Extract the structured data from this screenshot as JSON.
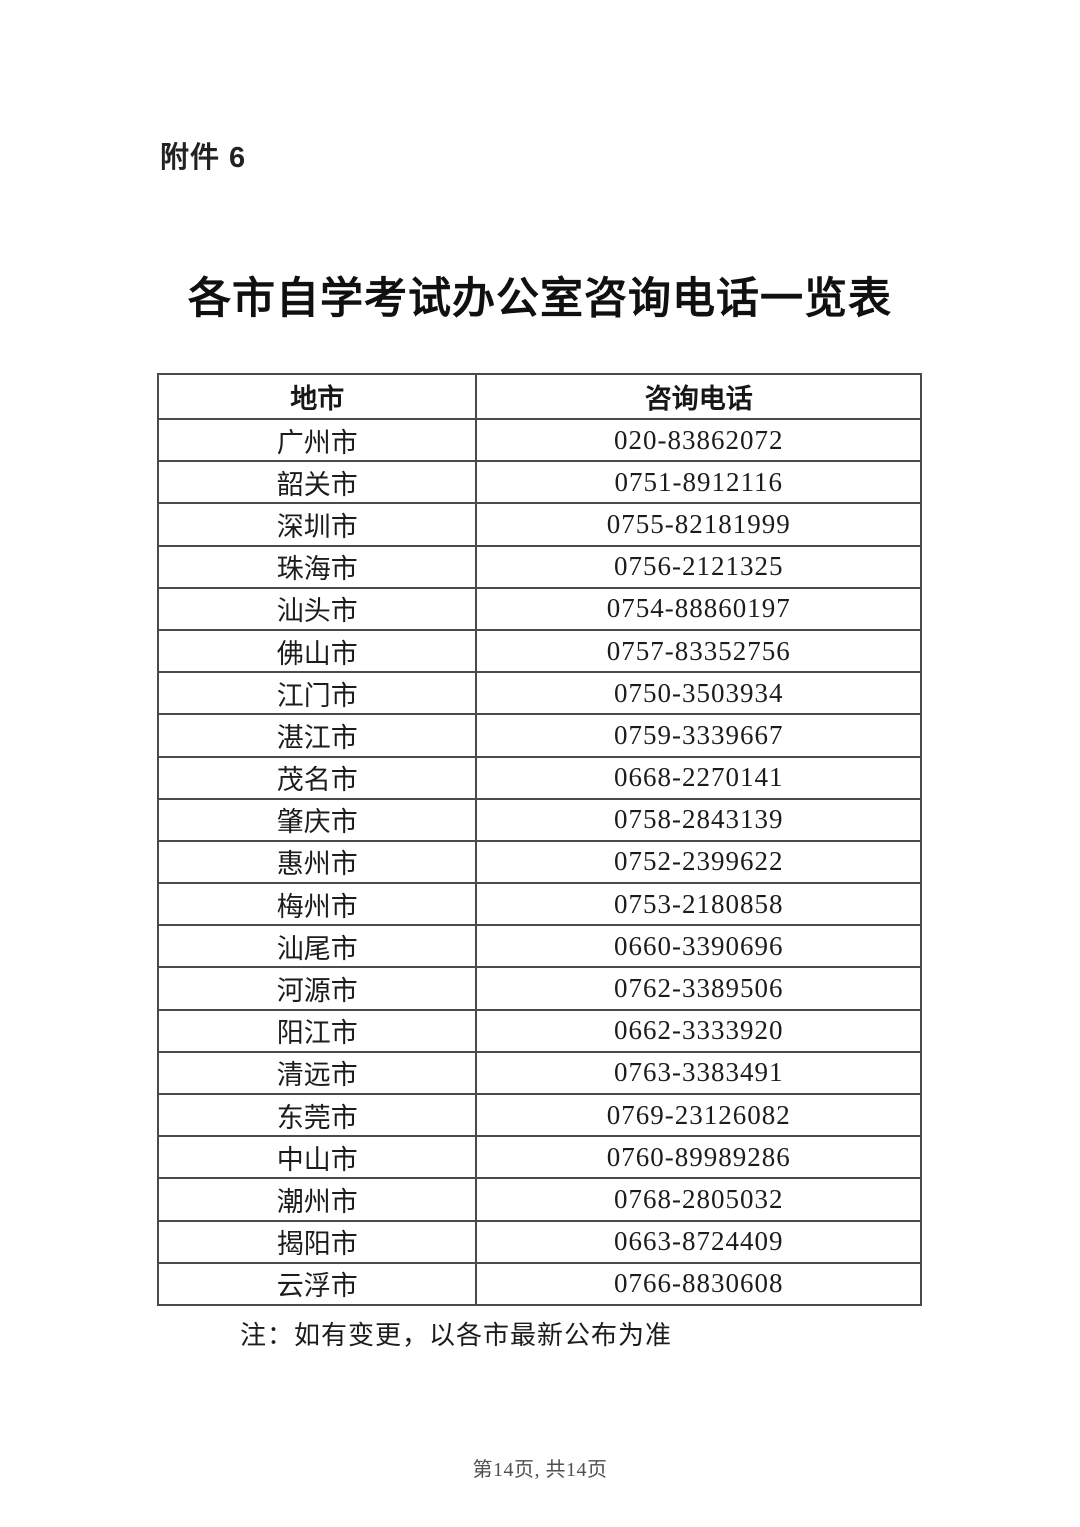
{
  "page": {
    "attachment_label": "附件 6",
    "title": "各市自学考试办公室咨询电话一览表",
    "note": "注：如有变更，以各市最新公布为准",
    "footer": "第14页, 共14页"
  },
  "table": {
    "headers": [
      "地市",
      "咨询电话"
    ],
    "rows": [
      {
        "city": "广州市",
        "phone": "020-83862072"
      },
      {
        "city": "韶关市",
        "phone": "0751-8912116"
      },
      {
        "city": "深圳市",
        "phone": "0755-82181999"
      },
      {
        "city": "珠海市",
        "phone": "0756-2121325"
      },
      {
        "city": "汕头市",
        "phone": "0754-88860197"
      },
      {
        "city": "佛山市",
        "phone": "0757-83352756"
      },
      {
        "city": "江门市",
        "phone": "0750-3503934"
      },
      {
        "city": "湛江市",
        "phone": "0759-3339667"
      },
      {
        "city": "茂名市",
        "phone": "0668-2270141"
      },
      {
        "city": "肇庆市",
        "phone": "0758-2843139"
      },
      {
        "city": "惠州市",
        "phone": "0752-2399622"
      },
      {
        "city": "梅州市",
        "phone": "0753-2180858"
      },
      {
        "city": "汕尾市",
        "phone": "0660-3390696"
      },
      {
        "city": "河源市",
        "phone": "0762-3389506"
      },
      {
        "city": "阳江市",
        "phone": "0662-3333920"
      },
      {
        "city": "清远市",
        "phone": "0763-3383491"
      },
      {
        "city": "东莞市",
        "phone": "0769-23126082"
      },
      {
        "city": "中山市",
        "phone": "0760-89989286"
      },
      {
        "city": "潮州市",
        "phone": "0768-2805032"
      },
      {
        "city": "揭阳市",
        "phone": "0663-8724409"
      },
      {
        "city": "云浮市",
        "phone": "0766-8830608"
      }
    ]
  },
  "colors": {
    "background": "#ffffff",
    "text": "#1c1c1c",
    "border_outer": "#2f2f2f",
    "border_inner": "#4a4a4a",
    "footer_text": "#4f4f4f"
  }
}
